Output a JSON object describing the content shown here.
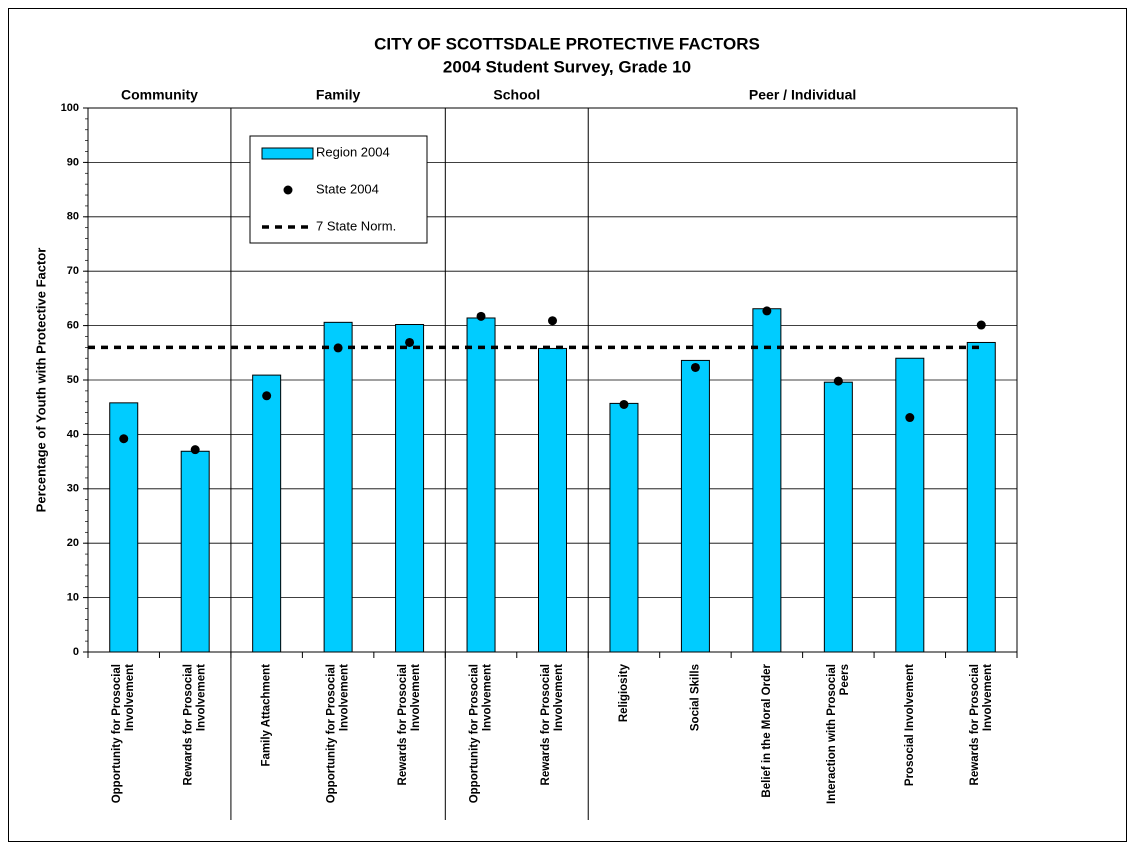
{
  "chart_data": {
    "type": "bar",
    "title": "CITY OF SCOTTSDALE  PROTECTIVE FACTORS",
    "subtitle": "2004 Student Survey, Grade 10",
    "ylabel": "Percentage of Youth with Protective Factor",
    "groups": [
      {
        "name": "Community",
        "count": 2
      },
      {
        "name": "Family",
        "count": 3
      },
      {
        "name": "School",
        "count": 2
      },
      {
        "name": "Peer / Individual",
        "count": 6
      }
    ],
    "categories": [
      "Opportunity for Prosocial Involvement",
      "Rewards for Prosocial Involvement",
      "Family Attachment",
      "Opportunity for Prosocial Involvement",
      "Rewards for Prosocial Involvement",
      "Opportunity for Prosocial Involvement",
      "Rewards for Prosocial Involvement",
      "Religiosity",
      "Social Skills",
      "Belief in the Moral Order",
      "Interaction with Prosocial Peers",
      "Prosocial Involvement",
      "Rewards for Prosocial Involvement"
    ],
    "series": [
      {
        "name": "Region 2004",
        "kind": "bar",
        "color": "#00ccff",
        "values": [
          45.8,
          36.9,
          50.9,
          60.6,
          60.2,
          61.4,
          55.8,
          45.7,
          53.6,
          63.1,
          49.6,
          54.0,
          56.9
        ]
      },
      {
        "name": "State 2004",
        "kind": "dot",
        "color": "#000000",
        "values": [
          39.2,
          37.2,
          47.1,
          55.9,
          56.9,
          61.7,
          60.9,
          45.5,
          52.3,
          62.7,
          49.8,
          43.1,
          60.1
        ]
      },
      {
        "name": "7 State Norm.",
        "kind": "dashed-line",
        "color": "#000000",
        "value": 56
      }
    ],
    "ylim": [
      0,
      100
    ],
    "yticks": [
      0,
      10,
      20,
      30,
      40,
      50,
      60,
      70,
      80,
      90,
      100
    ],
    "grid": true,
    "legend": "upper left"
  }
}
